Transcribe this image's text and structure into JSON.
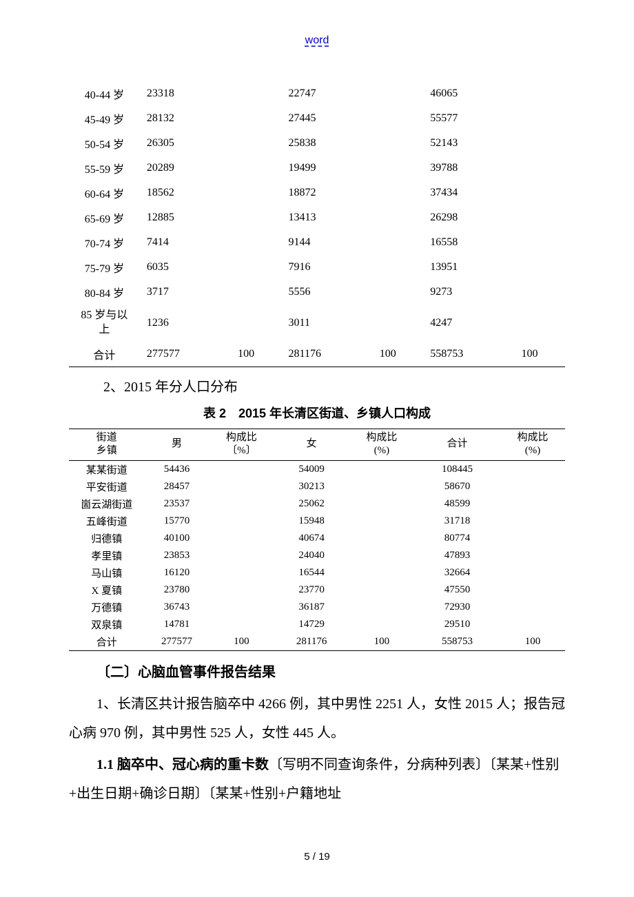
{
  "header": {
    "link_text": "word"
  },
  "table1": {
    "rows": [
      {
        "age": "40-44 岁",
        "male": "23318",
        "male_pct": "",
        "female": "22747",
        "female_pct": "",
        "total": "46065",
        "total_pct": ""
      },
      {
        "age": "45-49 岁",
        "male": "28132",
        "male_pct": "",
        "female": "27445",
        "female_pct": "",
        "total": "55577",
        "total_pct": ""
      },
      {
        "age": "50-54 岁",
        "male": "26305",
        "male_pct": "",
        "female": "25838",
        "female_pct": "",
        "total": "52143",
        "total_pct": ""
      },
      {
        "age": "55-59 岁",
        "male": "20289",
        "male_pct": "",
        "female": "19499",
        "female_pct": "",
        "total": "39788",
        "total_pct": ""
      },
      {
        "age": "60-64 岁",
        "male": "18562",
        "male_pct": "",
        "female": "18872",
        "female_pct": "",
        "total": "37434",
        "total_pct": ""
      },
      {
        "age": "65-69 岁",
        "male": "12885",
        "male_pct": "",
        "female": "13413",
        "female_pct": "",
        "total": "26298",
        "total_pct": ""
      },
      {
        "age": "70-74 岁",
        "male": "7414",
        "male_pct": "",
        "female": "9144",
        "female_pct": "",
        "total": "16558",
        "total_pct": ""
      },
      {
        "age": "75-79 岁",
        "male": "6035",
        "male_pct": "",
        "female": "7916",
        "female_pct": "",
        "total": "13951",
        "total_pct": ""
      },
      {
        "age": "80-84 岁",
        "male": "3717",
        "male_pct": "",
        "female": "5556",
        "female_pct": "",
        "total": "9273",
        "total_pct": ""
      },
      {
        "age": "85 岁与以上",
        "male": "1236",
        "male_pct": "",
        "female": "3011",
        "female_pct": "",
        "total": "4247",
        "total_pct": "",
        "multiline": true
      },
      {
        "age": "合计",
        "male": "277577",
        "male_pct": "100",
        "female": "281176",
        "female_pct": "100",
        "total": "558753",
        "total_pct": "100",
        "last": true
      }
    ]
  },
  "section_heading": "2、2015 年分人口分布",
  "table2": {
    "title": "表 2　2015 年长清区街道、乡镇人口构成",
    "headers": {
      "col1": "街道\n乡镇",
      "col2": "男",
      "col3": "构成比\n〔%〕",
      "col4": "女",
      "col5": "构成比\n(%)",
      "col6": "合计",
      "col7": "构成比\n(%)"
    },
    "rows": [
      {
        "name": "某某街道",
        "male": "54436",
        "male_pct": "",
        "female": "54009",
        "female_pct": "",
        "total": "108445",
        "total_pct": ""
      },
      {
        "name": "平安街道",
        "male": "28457",
        "male_pct": "",
        "female": "30213",
        "female_pct": "",
        "total": "58670",
        "total_pct": ""
      },
      {
        "name": "崮云湖街道",
        "male": "23537",
        "male_pct": "",
        "female": "25062",
        "female_pct": "",
        "total": "48599",
        "total_pct": ""
      },
      {
        "name": "五峰街道",
        "male": "15770",
        "male_pct": "",
        "female": "15948",
        "female_pct": "",
        "total": "31718",
        "total_pct": ""
      },
      {
        "name": "归德镇",
        "male": "40100",
        "male_pct": "",
        "female": "40674",
        "female_pct": "",
        "total": "80774",
        "total_pct": ""
      },
      {
        "name": "孝里镇",
        "male": "23853",
        "male_pct": "",
        "female": "24040",
        "female_pct": "",
        "total": "47893",
        "total_pct": ""
      },
      {
        "name": "马山镇",
        "male": "16120",
        "male_pct": "",
        "female": "16544",
        "female_pct": "",
        "total": "32664",
        "total_pct": ""
      },
      {
        "name": "X 夏镇",
        "male": "23780",
        "male_pct": "",
        "female": "23770",
        "female_pct": "",
        "total": "47550",
        "total_pct": ""
      },
      {
        "name": "万德镇",
        "male": "36743",
        "male_pct": "",
        "female": "36187",
        "female_pct": "",
        "total": "72930",
        "total_pct": ""
      },
      {
        "name": "双泉镇",
        "male": "14781",
        "male_pct": "",
        "female": "14729",
        "female_pct": "",
        "total": "29510",
        "total_pct": ""
      },
      {
        "name": "合计",
        "male": "277577",
        "male_pct": "100",
        "female": "281176",
        "female_pct": "100",
        "total": "558753",
        "total_pct": "100",
        "last": true
      }
    ]
  },
  "body": {
    "subsection_title": "〔二〕心脑血管事件报告结果",
    "para1": "1、长清区共计报告脑卒中 4266 例，其中男性 2251 人，女性 2015 人；报告冠心病 970 例，其中男性 525 人，女性 445 人。",
    "para2_bold": "1.1 脑卒中、冠心病的重卡数",
    "para2_rest": "〔写明不同查询条件，分病种列表〕〔某某+性别+出生日期+确诊日期〕〔某某+性别+户籍地址"
  },
  "footer": {
    "page": "5 / 19"
  }
}
